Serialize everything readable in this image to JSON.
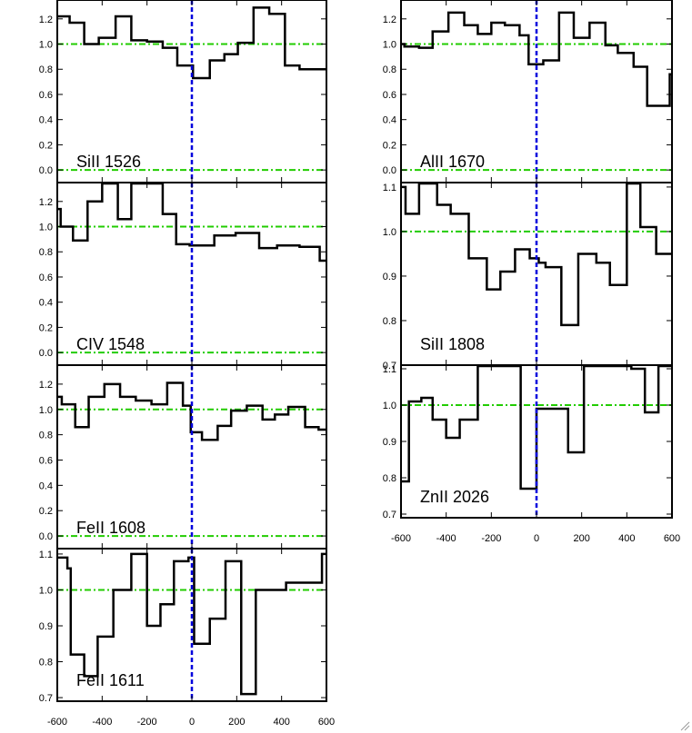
{
  "chart_data": {
    "type": "line",
    "style": {
      "spectrum_color": "#000000",
      "continuum_color": "#22cc00",
      "velocity_marker_color": "#0000dd",
      "background": "#ffffff"
    },
    "x_ticks": [
      -600,
      -400,
      -200,
      0,
      200,
      400,
      600
    ],
    "x_tick_labels": [
      "-600",
      "-400",
      "-200",
      "0",
      "200",
      "400",
      "600"
    ],
    "panels": [
      {
        "label": "SiII 1526",
        "xlim": [
          -600,
          600
        ],
        "ylim": [
          -0.1,
          1.35
        ],
        "yticks": [
          0.0,
          0.2,
          0.4,
          0.6,
          0.8,
          1.0,
          1.2
        ],
        "ytick_labels": [
          "0.0",
          "0.2",
          "0.4",
          "0.6",
          "0.8",
          "1.0",
          "1.2"
        ],
        "continuum": [
          0.0,
          1.0
        ],
        "x_edges": [
          -600,
          -545,
          -480,
          -415,
          -340,
          -270,
          -200,
          -130,
          -65,
          5,
          80,
          145,
          205,
          275,
          345,
          415,
          480,
          600
        ],
        "flux": [
          1.22,
          1.17,
          1.0,
          1.05,
          1.22,
          1.03,
          1.02,
          0.97,
          0.83,
          0.73,
          0.87,
          0.92,
          1.01,
          1.29,
          1.24,
          0.83,
          0.8
        ]
      },
      {
        "label": "CIV 1548",
        "xlim": [
          -600,
          600
        ],
        "ylim": [
          -0.1,
          1.35
        ],
        "yticks": [
          0.0,
          0.2,
          0.4,
          0.6,
          0.8,
          1.0,
          1.2
        ],
        "ytick_labels": [
          "0.0",
          "0.2",
          "0.4",
          "0.6",
          "0.8",
          "1.0",
          "1.2"
        ],
        "continuum": [
          0.0,
          1.0
        ],
        "x_edges": [
          -600,
          -585,
          -530,
          -465,
          -400,
          -330,
          -270,
          -200,
          -130,
          -70,
          -10,
          100,
          195,
          300,
          380,
          480,
          570,
          600
        ],
        "flux": [
          1.14,
          1.0,
          0.89,
          1.2,
          1.36,
          1.06,
          1.35,
          1.37,
          1.1,
          0.86,
          0.85,
          0.93,
          0.95,
          0.83,
          0.85,
          0.84,
          0.73
        ]
      },
      {
        "label": "FeII 1608",
        "xlim": [
          -600,
          600
        ],
        "ylim": [
          -0.1,
          1.35
        ],
        "yticks": [
          0.0,
          0.2,
          0.4,
          0.6,
          0.8,
          1.0,
          1.2
        ],
        "ytick_labels": [
          "0.0",
          "0.2",
          "0.4",
          "0.6",
          "0.8",
          "1.0",
          "1.2"
        ],
        "continuum": [
          0.0,
          1.0
        ],
        "x_edges": [
          -600,
          -580,
          -520,
          -460,
          -390,
          -320,
          -250,
          -180,
          -110,
          -40,
          -5,
          45,
          115,
          175,
          245,
          315,
          370,
          430,
          505,
          565,
          600
        ],
        "flux": [
          1.1,
          1.04,
          0.86,
          1.1,
          1.2,
          1.1,
          1.07,
          1.04,
          1.21,
          1.03,
          0.82,
          0.76,
          0.87,
          0.99,
          1.03,
          0.92,
          0.96,
          1.02,
          0.86,
          0.84
        ]
      },
      {
        "label": "FeII 1611",
        "xlim": [
          -600,
          600
        ],
        "ylim": [
          0.69,
          1.115
        ],
        "yticks": [
          0.7,
          0.8,
          0.9,
          1.0,
          1.1
        ],
        "ytick_labels": [
          "0.7",
          "0.8",
          "0.9",
          "1.0",
          "1.1"
        ],
        "continuum": [
          1.0
        ],
        "x_edges": [
          -600,
          -555,
          -540,
          -480,
          -420,
          -350,
          -270,
          -200,
          -140,
          -80,
          -15,
          10,
          80,
          150,
          220,
          285,
          420,
          580,
          600
        ],
        "flux": [
          1.09,
          1.06,
          0.82,
          0.76,
          0.87,
          1.0,
          1.1,
          0.9,
          0.96,
          1.08,
          1.09,
          0.85,
          0.92,
          1.08,
          0.71,
          1.0,
          1.02,
          1.1
        ]
      },
      {
        "label": "AlII 1670",
        "xlim": [
          -600,
          600
        ],
        "ylim": [
          -0.1,
          1.35
        ],
        "yticks": [
          0.0,
          0.2,
          0.4,
          0.6,
          0.8,
          1.0,
          1.2
        ],
        "ytick_labels": [
          "0.0",
          "0.2",
          "0.4",
          "0.6",
          "0.8",
          "1.0",
          "1.2"
        ],
        "continuum": [
          0.0,
          1.0
        ],
        "x_edges": [
          -600,
          -585,
          -520,
          -460,
          -390,
          -320,
          -260,
          -200,
          -140,
          -75,
          -35,
          30,
          100,
          165,
          235,
          305,
          360,
          430,
          490,
          570,
          590,
          600
        ],
        "flux": [
          1.0,
          0.98,
          0.97,
          1.1,
          1.25,
          1.15,
          1.08,
          1.17,
          1.15,
          1.07,
          0.84,
          0.87,
          1.25,
          1.05,
          1.17,
          0.99,
          0.93,
          0.82,
          0.51,
          0.51,
          0.76
        ]
      },
      {
        "label": "SiII 1808",
        "xlim": [
          -600,
          600
        ],
        "ylim": [
          0.7,
          1.11
        ],
        "yticks": [
          0.7,
          0.8,
          0.9,
          1.0,
          1.1
        ],
        "ytick_labels": [
          "0.7",
          "0.8",
          "0.9",
          "1.0",
          "1.1"
        ],
        "continuum": [
          1.0
        ],
        "x_edges": [
          -600,
          -580,
          -520,
          -440,
          -380,
          -300,
          -220,
          -160,
          -95,
          -30,
          10,
          40,
          110,
          185,
          265,
          325,
          400,
          460,
          530,
          580,
          600
        ],
        "flux": [
          1.1,
          1.04,
          1.12,
          1.06,
          1.04,
          0.94,
          0.87,
          0.91,
          0.96,
          0.94,
          0.93,
          0.92,
          0.79,
          0.95,
          0.93,
          0.88,
          1.11,
          1.01,
          0.95,
          0.95
        ]
      },
      {
        "label": "ZnII 2026",
        "xlim": [
          -600,
          600
        ],
        "ylim": [
          0.69,
          1.11
        ],
        "yticks": [
          0.7,
          0.8,
          0.9,
          1.0,
          1.1
        ],
        "ytick_labels": [
          "0.7",
          "0.8",
          "0.9",
          "1.0",
          "1.1"
        ],
        "continuum": [
          1.0
        ],
        "x_edges": [
          -600,
          -565,
          -510,
          -460,
          -400,
          -340,
          -260,
          -200,
          -130,
          -70,
          0,
          10,
          140,
          210,
          420,
          480,
          540,
          570,
          600
        ],
        "flux": [
          0.79,
          1.01,
          1.02,
          0.96,
          0.91,
          0.96,
          1.12,
          1.12,
          1.12,
          0.77,
          0.99,
          0.99,
          0.87,
          1.12,
          1.1,
          0.98,
          1.12,
          1.12
        ]
      }
    ]
  }
}
